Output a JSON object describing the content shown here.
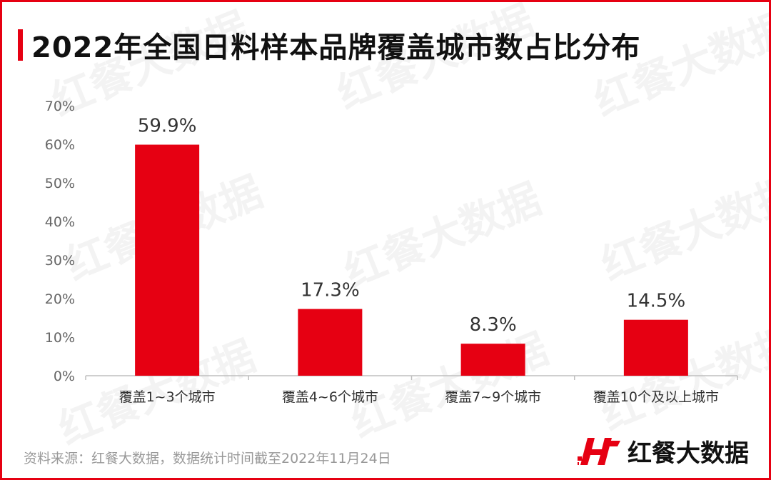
{
  "header": {
    "title": "2022年全国日料样本品牌覆盖城市数占比分布"
  },
  "footer": {
    "source_note": "资料来源：红餐大数据，数据统计时间截至2022年11月24日",
    "brand_name": "红餐大数据"
  },
  "watermark": {
    "text": "红餐大数据"
  },
  "colors": {
    "accent": "#e60012",
    "bar": "#e60012",
    "axis_text": "#666666",
    "label_text": "#333333"
  },
  "chart_data": {
    "type": "bar",
    "categories": [
      "覆盖1~3个城市",
      "覆盖4~6个城市",
      "覆盖7~9个城市",
      "覆盖10个及以上城市"
    ],
    "values": [
      59.9,
      17.3,
      8.3,
      14.5
    ],
    "data_labels": [
      "59.9%",
      "17.3%",
      "8.3%",
      "14.5%"
    ],
    "title": "2022年全国日料样本品牌覆盖城市数占比分布",
    "xlabel": "",
    "ylabel": "",
    "ylim": [
      0,
      70
    ],
    "yticks": [
      "0%",
      "10%",
      "20%",
      "30%",
      "40%",
      "50%",
      "60%",
      "70%"
    ],
    "grid": false,
    "legend": "none"
  }
}
